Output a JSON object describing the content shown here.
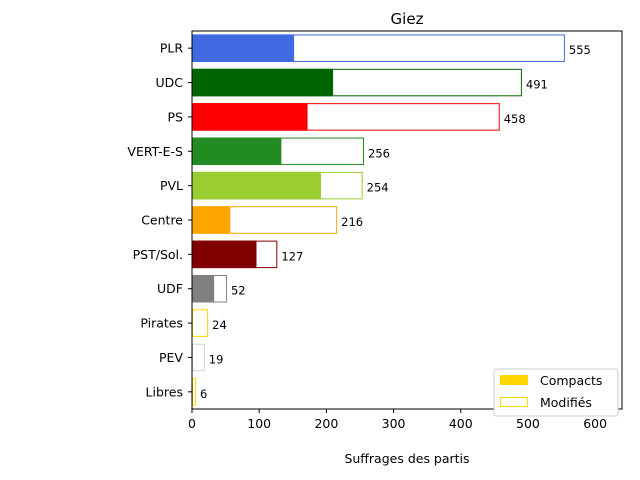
{
  "chart_data": {
    "type": "bar",
    "orientation": "horizontal",
    "title": "Giez",
    "xlabel": "Suffrages des partis",
    "ylabel": "",
    "xlim": [
      0,
      640
    ],
    "x_ticks": [
      0,
      100,
      200,
      300,
      400,
      500,
      600
    ],
    "grid": false,
    "legend_position": "lower-right",
    "legend": [
      {
        "label": "Compacts",
        "style": "filled",
        "color": "#FFD700"
      },
      {
        "label": "Modifiés",
        "style": "outline",
        "color": "#FFD700"
      }
    ],
    "categories": [
      "PLR",
      "UDC",
      "PS",
      "VERT-E-S",
      "PVL",
      "Centre",
      "PST/Sol.",
      "UDF",
      "Pirates",
      "PEV",
      "Libres"
    ],
    "series": [
      {
        "name": "Compacts",
        "values": [
          152,
          210,
          172,
          133,
          192,
          57,
          96,
          33,
          0,
          0,
          0
        ]
      },
      {
        "name": "Modifiés",
        "values": [
          555,
          491,
          458,
          256,
          254,
          216,
          127,
          52,
          24,
          19,
          6
        ]
      }
    ],
    "colors": [
      "#4169E1",
      "#006400",
      "#FF0000",
      "#228B22",
      "#9ACD32",
      "#FFA500",
      "#800000",
      "#808080",
      "#FFD700",
      "#D3D3D3",
      "#FFD700"
    ],
    "total_labels": [
      "555",
      "491",
      "458",
      "256",
      "254",
      "216",
      "127",
      "52",
      "24",
      "19",
      "6"
    ]
  }
}
